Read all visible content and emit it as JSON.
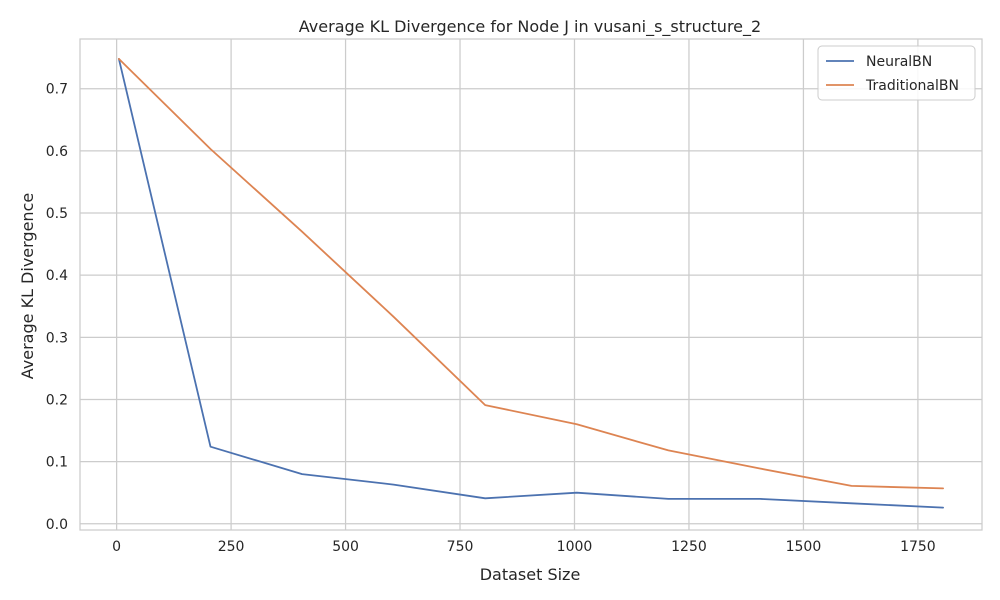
{
  "chart_data": {
    "type": "line",
    "title": "Average KL Divergence for Node J in vusani_s_structure_2",
    "xlabel": "Dataset Size",
    "ylabel": "Average KL Divergence",
    "xlim": [
      -80,
      1890
    ],
    "ylim": [
      -0.01,
      0.78
    ],
    "xticks": [
      0,
      250,
      500,
      750,
      1000,
      1250,
      1500,
      1750
    ],
    "yticks": [
      0.0,
      0.1,
      0.2,
      0.3,
      0.4,
      0.5,
      0.6,
      0.7
    ],
    "grid": true,
    "legend_position": "top-right",
    "x": [
      5,
      205,
      405,
      605,
      805,
      1005,
      1205,
      1405,
      1605,
      1805
    ],
    "series": [
      {
        "name": "NeuralBN",
        "color": "#4c72b0",
        "values": [
          0.748,
          0.124,
          0.08,
          0.063,
          0.041,
          0.05,
          0.04,
          0.04,
          0.033,
          0.026
        ]
      },
      {
        "name": "TraditionalBN",
        "color": "#dd8452",
        "values": [
          0.748,
          0.603,
          0.47,
          0.333,
          0.191,
          0.16,
          0.118,
          0.089,
          0.061,
          0.057
        ]
      }
    ]
  }
}
